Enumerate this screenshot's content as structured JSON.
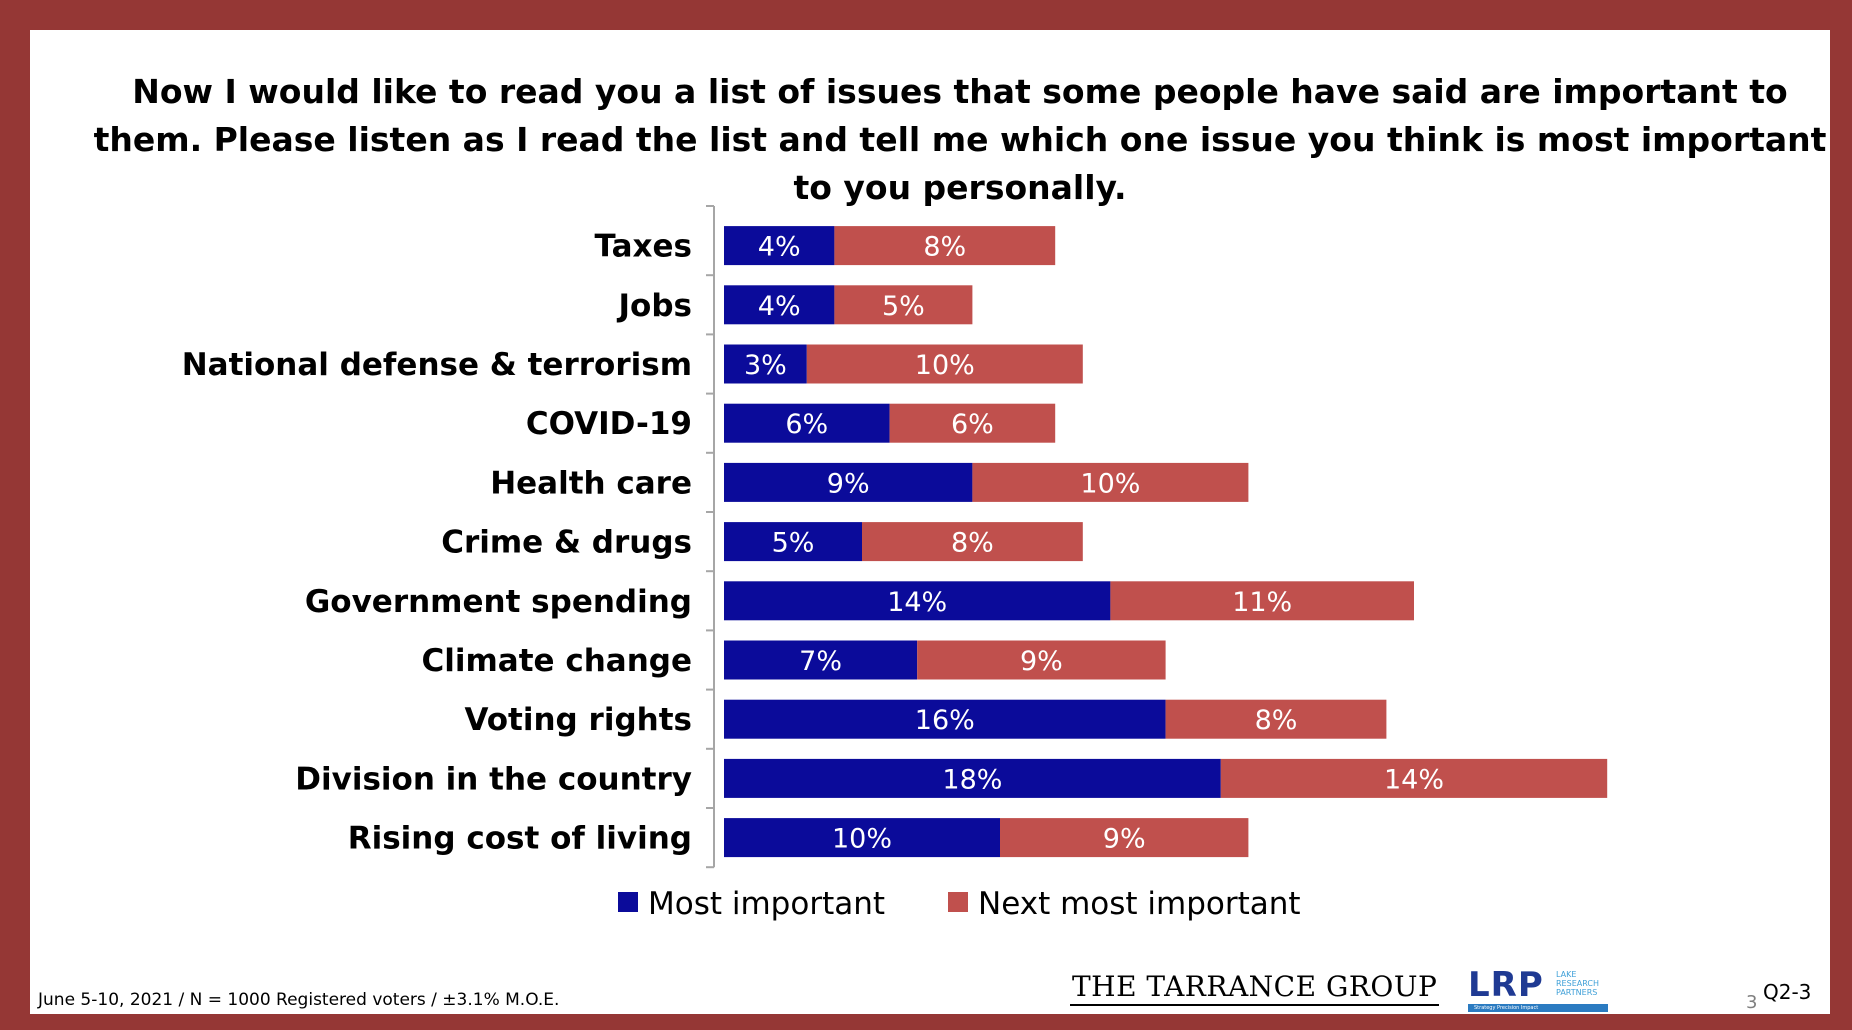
{
  "title": "Now I would like to read you a list of issues that some people have said are important to them.  Please listen as I read the list and tell me which one issue you think is most important to you personally.",
  "chart_data": {
    "type": "bar",
    "orientation": "horizontal",
    "stacked": true,
    "categories": [
      "Taxes",
      "Jobs",
      "National defense & terrorism",
      "COVID-19",
      "Health care",
      "Crime & drugs",
      "Government spending",
      "Climate change",
      "Voting rights",
      "Division in the country",
      "Rising cost of living"
    ],
    "series": [
      {
        "name": "Most important",
        "color": "#0b0b9a",
        "values": [
          4,
          4,
          3,
          6,
          9,
          5,
          14,
          7,
          16,
          18,
          10
        ]
      },
      {
        "name": "Next most important",
        "color": "#c0504d",
        "values": [
          8,
          5,
          10,
          6,
          10,
          8,
          11,
          9,
          8,
          14,
          9
        ]
      }
    ],
    "value_suffix": "%",
    "xlim": [
      0,
      32
    ],
    "legend_position": "bottom"
  },
  "footer": {
    "note": "June 5-10, 2021 / N = 1000 Registered voters / ±3.1% M.O.E.",
    "tarrance_logo": "THE TARRANCE GROUP",
    "lrp_logo": "LRP",
    "lrp_subtitle": [
      "LAKE",
      "RESEARCH",
      "PARTNERS"
    ],
    "lrp_tagline": "Strategy  Precision  Impact",
    "page_number": "3",
    "slide_id": "Q2-3"
  }
}
